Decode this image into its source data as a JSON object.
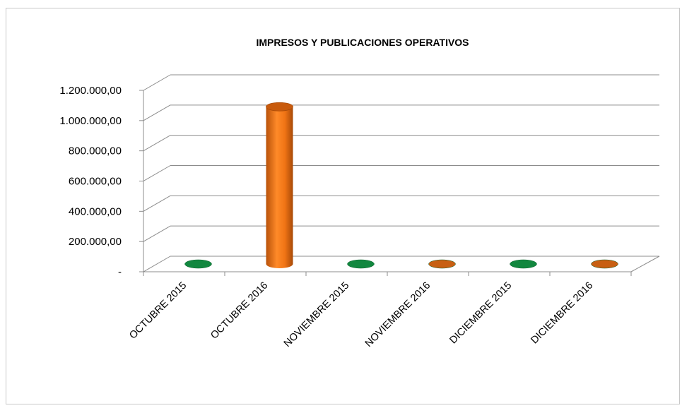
{
  "chart_data": {
    "type": "bar",
    "title": "IMPRESOS Y PUBLICACIONES  OPERATIVOS",
    "xlabel": "",
    "ylabel": "",
    "categories": [
      "OCTUBRE  2015",
      "OCTUBRE  2016",
      "NOVIEMBRE 2015",
      "NOVIEMBRE 2016",
      "DICIEMBRE 2015",
      "DICIEMBRE 2016"
    ],
    "values": [
      0,
      1040000,
      0,
      0,
      0,
      0
    ],
    "ylim": [
      0,
      1200000
    ],
    "y_ticks": [
      {
        "value": 0,
        "label": "-"
      },
      {
        "value": 200000,
        "label": "200.000,00"
      },
      {
        "value": 400000,
        "label": "400.000,00"
      },
      {
        "value": 600000,
        "label": "600.000,00"
      },
      {
        "value": 800000,
        "label": "800.000,00"
      },
      {
        "value": 1000000,
        "label": "1.000.000,00"
      },
      {
        "value": 1200000,
        "label": "1.200.000,00"
      }
    ],
    "grid": true,
    "legend": "none",
    "style": "3d-cylinder",
    "bar_colors": [
      "#12873f",
      "#e96e12",
      "#12873f",
      "#c85f12",
      "#12873f",
      "#c85f12"
    ],
    "gridline_color": "#8c8c8c"
  }
}
